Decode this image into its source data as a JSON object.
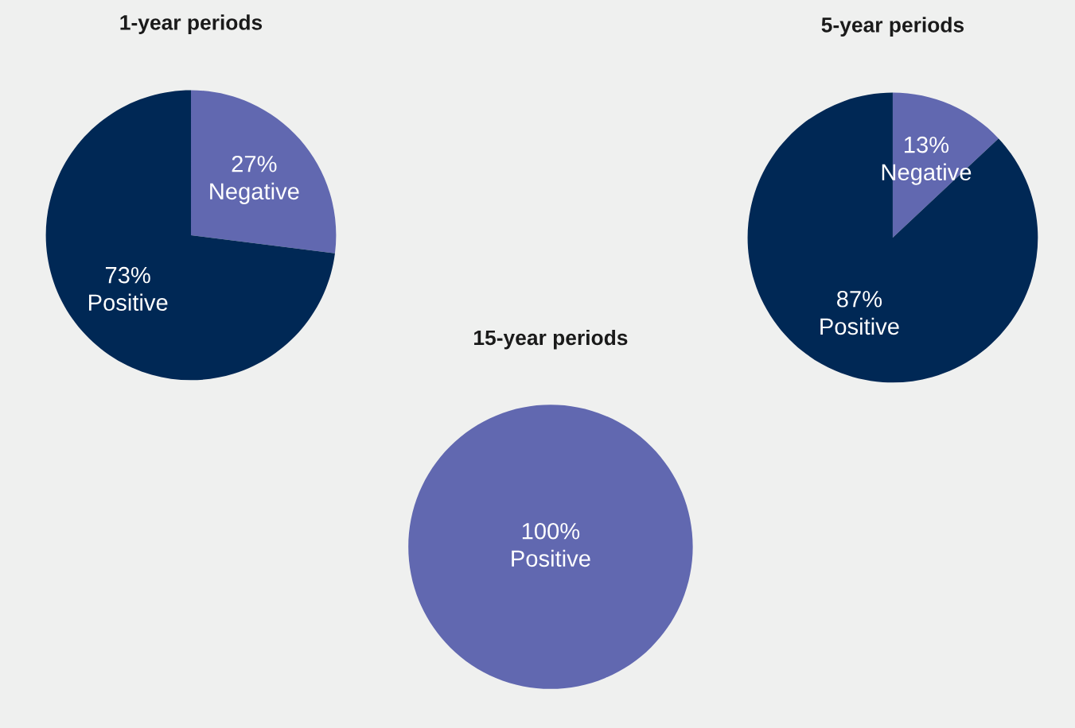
{
  "chart_data": [
    {
      "type": "pie",
      "title": "1-year periods",
      "categories": [
        "Negative",
        "Positive"
      ],
      "values": [
        27,
        73
      ],
      "value_labels": [
        "27%",
        "73%"
      ],
      "colors": [
        "#6168b0",
        "#002855"
      ]
    },
    {
      "type": "pie",
      "title": "5-year periods",
      "categories": [
        "Negative",
        "Positive"
      ],
      "values": [
        13,
        87
      ],
      "value_labels": [
        "13%",
        "87%"
      ],
      "colors": [
        "#6168b0",
        "#002855"
      ]
    },
    {
      "type": "pie",
      "title": "15-year periods",
      "categories": [
        "Positive"
      ],
      "values": [
        100
      ],
      "value_labels": [
        "100%"
      ],
      "colors": [
        "#6168b0"
      ]
    }
  ]
}
